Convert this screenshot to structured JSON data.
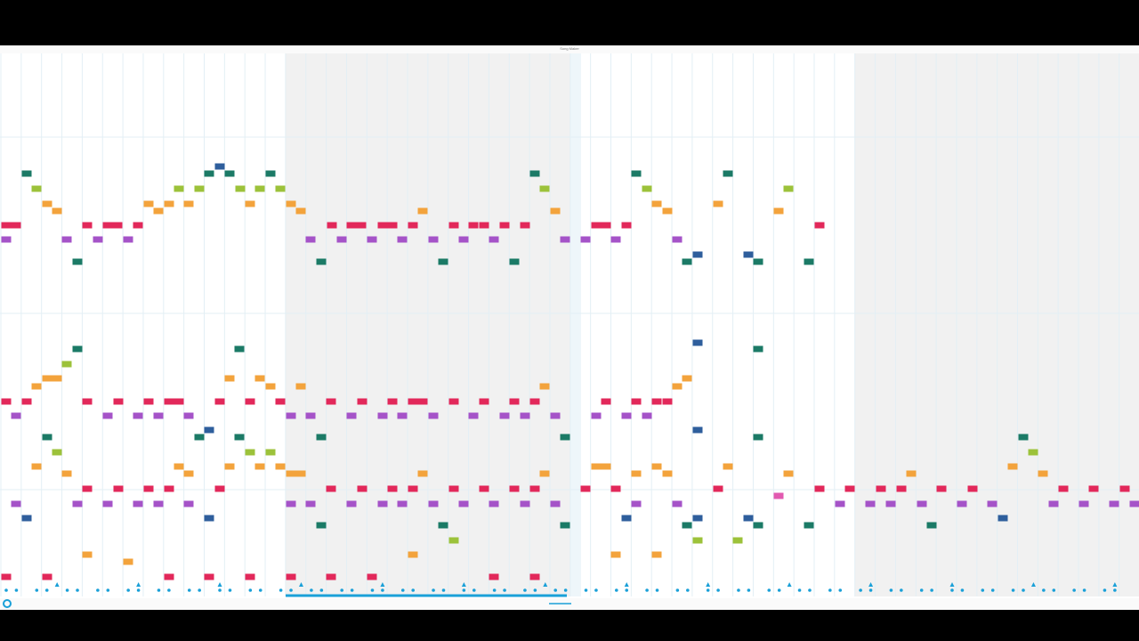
{
  "header": {
    "title": "Song Maker"
  }
}
